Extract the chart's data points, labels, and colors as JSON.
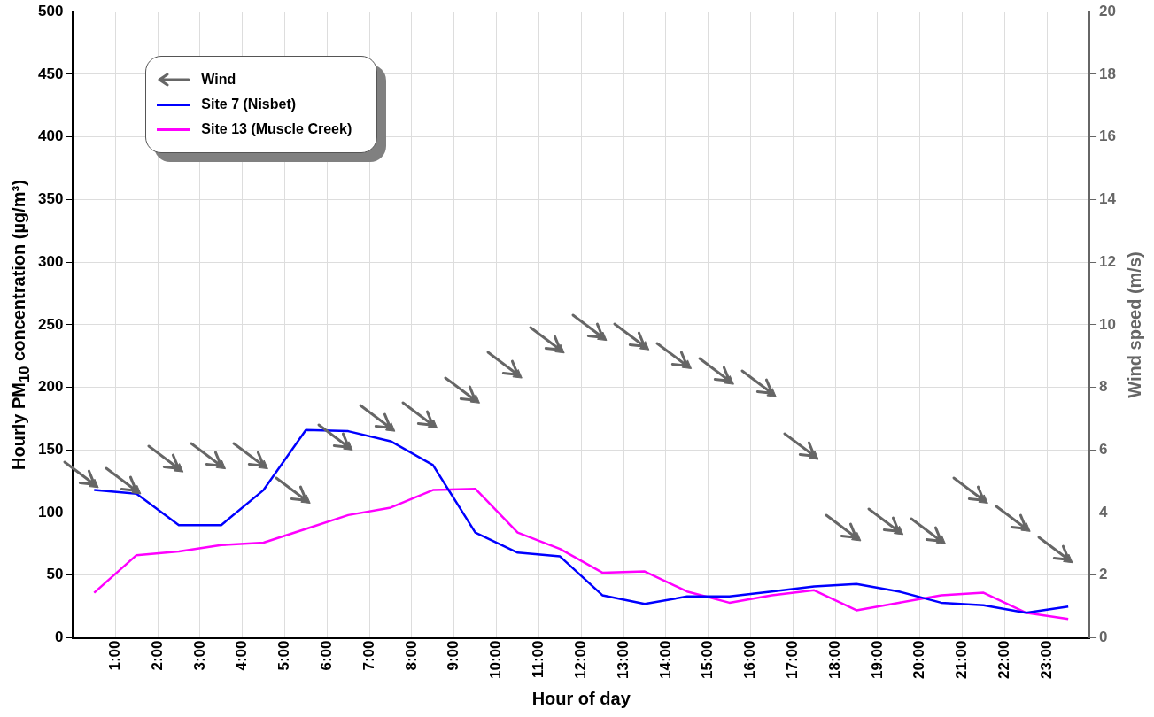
{
  "chart_data": {
    "type": "line",
    "xlabel": "Hour of day",
    "ylabel": "Hourly PM$_{10}$ concentration (µg/m³)",
    "y2label": "Wind speed (m/s)",
    "x": [
      0.5,
      1.5,
      2.5,
      3.5,
      4.5,
      5.5,
      6.5,
      7.5,
      8.5,
      9.5,
      10.5,
      11.5,
      12.5,
      13.5,
      14.5,
      15.5,
      16.5,
      17.5,
      18.5,
      19.5,
      20.5,
      21.5,
      22.5,
      23.5
    ],
    "xlim": [
      0,
      24
    ],
    "xticks": [
      {
        "value": 0,
        "label": null
      },
      {
        "value": 1,
        "label": "1:00"
      },
      {
        "value": 2,
        "label": "2:00"
      },
      {
        "value": 3,
        "label": "3:00"
      },
      {
        "value": 4,
        "label": "4:00"
      },
      {
        "value": 5,
        "label": "5:00"
      },
      {
        "value": 6,
        "label": "6:00"
      },
      {
        "value": 7,
        "label": "7:00"
      },
      {
        "value": 8,
        "label": "8:00"
      },
      {
        "value": 9,
        "label": "9:00"
      },
      {
        "value": 10,
        "label": "10:00"
      },
      {
        "value": 11,
        "label": "11:00"
      },
      {
        "value": 12,
        "label": "12:00"
      },
      {
        "value": 13,
        "label": "13:00"
      },
      {
        "value": 14,
        "label": "14:00"
      },
      {
        "value": 15,
        "label": "15:00"
      },
      {
        "value": 16,
        "label": "16:00"
      },
      {
        "value": 17,
        "label": "17:00"
      },
      {
        "value": 18,
        "label": "18:00"
      },
      {
        "value": 19,
        "label": "19:00"
      },
      {
        "value": 20,
        "label": "20:00"
      },
      {
        "value": 21,
        "label": "21:00"
      },
      {
        "value": 22,
        "label": "22:00"
      },
      {
        "value": 23,
        "label": "23:00"
      },
      {
        "value": 24,
        "label": null
      }
    ],
    "ylim": [
      0,
      500
    ],
    "yticks": [
      0,
      50,
      100,
      150,
      200,
      250,
      300,
      350,
      400,
      450,
      500
    ],
    "y2lim": [
      0,
      20
    ],
    "y2ticks": [
      0,
      2,
      4,
      6,
      8,
      10,
      12,
      14,
      16,
      18,
      20
    ],
    "grid": true,
    "legend": "top left",
    "line_style": "solid",
    "marker": "none",
    "series": [
      {
        "name": "Wind",
        "type": "scatter",
        "axis": "y2",
        "marker": "triangle",
        "color": "#666666",
        "values": [
          4.9,
          4.7,
          5.4,
          5.5,
          5.5,
          4.4,
          6.1,
          6.7,
          6.8,
          7.6,
          8.4,
          9.2,
          9.6,
          9.3,
          8.7,
          8.2,
          7.8,
          5.8,
          3.2,
          3.4,
          3.1,
          4.4,
          3.5,
          2.5
        ]
      },
      {
        "name": "Site 7 (Nisbet)",
        "color": "#0000ff",
        "values": [
          118,
          115,
          90,
          90,
          118,
          166,
          165,
          157,
          138,
          84,
          68,
          65,
          34,
          27,
          33,
          33,
          37,
          41,
          43,
          37,
          28,
          26,
          20,
          25
        ]
      },
      {
        "name": "Site 13 (Muscle Creek)",
        "color": "#ff00ff",
        "values": [
          36,
          66,
          69,
          74,
          76,
          87,
          98,
          104,
          118,
          119,
          84,
          71,
          52,
          53,
          37,
          28,
          34,
          38,
          22,
          28,
          34,
          36,
          20,
          15
        ]
      }
    ]
  }
}
